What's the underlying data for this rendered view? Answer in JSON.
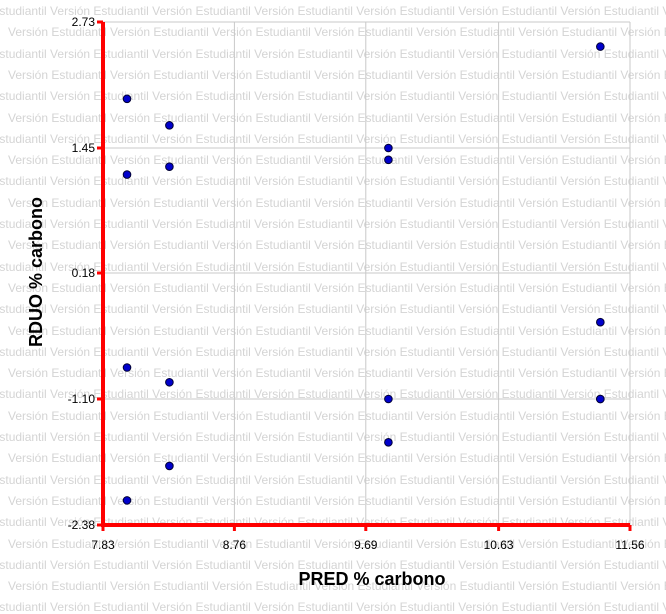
{
  "watermark_text": "Versión Estudiantil",
  "colors": {
    "axis": "#ff0000",
    "grid": "#c8c8c8",
    "point_fill": "#0000cc",
    "point_stroke": "#000033",
    "watermark": "#d4d4d4"
  },
  "chart_data": {
    "type": "scatter",
    "title": "",
    "xlabel": "PRED % carbono",
    "ylabel": "RDUO % carbono",
    "xlim": [
      7.83,
      11.56
    ],
    "ylim": [
      -2.38,
      2.73
    ],
    "xticks": [
      "7.83",
      "8.76",
      "9.69",
      "10.63",
      "11.56"
    ],
    "yticks": [
      "-2.38",
      "-1.10",
      "0.18",
      "1.45",
      "2.73"
    ],
    "grid": true,
    "points": [
      {
        "x": 8.0,
        "y": 1.95
      },
      {
        "x": 8.3,
        "y": 1.68
      },
      {
        "x": 8.0,
        "y": 1.18
      },
      {
        "x": 8.3,
        "y": 1.26
      },
      {
        "x": 8.0,
        "y": -0.78
      },
      {
        "x": 8.3,
        "y": -0.93
      },
      {
        "x": 8.3,
        "y": -1.78
      },
      {
        "x": 8.0,
        "y": -2.13
      },
      {
        "x": 9.85,
        "y": 1.45
      },
      {
        "x": 9.85,
        "y": 1.33
      },
      {
        "x": 9.85,
        "y": -1.1
      },
      {
        "x": 9.85,
        "y": -1.54
      },
      {
        "x": 11.35,
        "y": 2.48
      },
      {
        "x": 11.35,
        "y": -0.32
      },
      {
        "x": 11.35,
        "y": -1.1
      },
      {
        "x": 11.35,
        "y": -1.1
      }
    ]
  }
}
